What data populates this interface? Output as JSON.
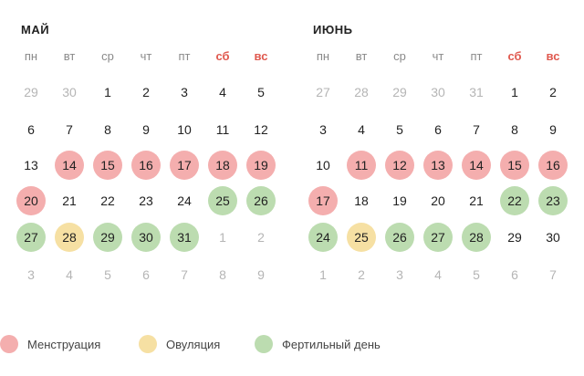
{
  "colors": {
    "menstruation": "#f4aeae",
    "ovulation": "#f6e0a3",
    "fertile": "#bcdcb0",
    "weekend_text": "#e0594f",
    "other_month_text": "#b5b5b5"
  },
  "weekdays": [
    {
      "label": "пн",
      "weekend": false
    },
    {
      "label": "вт",
      "weekend": false
    },
    {
      "label": "ср",
      "weekend": false
    },
    {
      "label": "чт",
      "weekend": false
    },
    {
      "label": "пт",
      "weekend": false
    },
    {
      "label": "сб",
      "weekend": true
    },
    {
      "label": "вс",
      "weekend": true
    }
  ],
  "months": [
    {
      "title": "МАЙ",
      "weeks": [
        [
          {
            "d": "29",
            "t": "other"
          },
          {
            "d": "30",
            "t": "other"
          },
          {
            "d": "1",
            "t": ""
          },
          {
            "d": "2",
            "t": ""
          },
          {
            "d": "3",
            "t": ""
          },
          {
            "d": "4",
            "t": ""
          },
          {
            "d": "5",
            "t": ""
          }
        ],
        [
          {
            "d": "6",
            "t": ""
          },
          {
            "d": "7",
            "t": ""
          },
          {
            "d": "8",
            "t": ""
          },
          {
            "d": "9",
            "t": ""
          },
          {
            "d": "10",
            "t": ""
          },
          {
            "d": "11",
            "t": ""
          },
          {
            "d": "12",
            "t": ""
          }
        ],
        [
          {
            "d": "13",
            "t": ""
          },
          {
            "d": "14",
            "t": "menstruation"
          },
          {
            "d": "15",
            "t": "menstruation"
          },
          {
            "d": "16",
            "t": "menstruation"
          },
          {
            "d": "17",
            "t": "menstruation"
          },
          {
            "d": "18",
            "t": "menstruation"
          },
          {
            "d": "19",
            "t": "menstruation"
          }
        ],
        [
          {
            "d": "20",
            "t": "menstruation"
          },
          {
            "d": "21",
            "t": ""
          },
          {
            "d": "22",
            "t": ""
          },
          {
            "d": "23",
            "t": ""
          },
          {
            "d": "24",
            "t": ""
          },
          {
            "d": "25",
            "t": "fertile"
          },
          {
            "d": "26",
            "t": "fertile"
          }
        ],
        [
          {
            "d": "27",
            "t": "fertile"
          },
          {
            "d": "28",
            "t": "ovulation"
          },
          {
            "d": "29",
            "t": "fertile"
          },
          {
            "d": "30",
            "t": "fertile"
          },
          {
            "d": "31",
            "t": "fertile"
          },
          {
            "d": "1",
            "t": "other"
          },
          {
            "d": "2",
            "t": "other"
          }
        ],
        [
          {
            "d": "3",
            "t": "other"
          },
          {
            "d": "4",
            "t": "other"
          },
          {
            "d": "5",
            "t": "other"
          },
          {
            "d": "6",
            "t": "other"
          },
          {
            "d": "7",
            "t": "other"
          },
          {
            "d": "8",
            "t": "other"
          },
          {
            "d": "9",
            "t": "other"
          }
        ]
      ]
    },
    {
      "title": "ИЮНЬ",
      "weeks": [
        [
          {
            "d": "27",
            "t": "other"
          },
          {
            "d": "28",
            "t": "other"
          },
          {
            "d": "29",
            "t": "other"
          },
          {
            "d": "30",
            "t": "other"
          },
          {
            "d": "31",
            "t": "other"
          },
          {
            "d": "1",
            "t": ""
          },
          {
            "d": "2",
            "t": ""
          }
        ],
        [
          {
            "d": "3",
            "t": ""
          },
          {
            "d": "4",
            "t": ""
          },
          {
            "d": "5",
            "t": ""
          },
          {
            "d": "6",
            "t": ""
          },
          {
            "d": "7",
            "t": ""
          },
          {
            "d": "8",
            "t": ""
          },
          {
            "d": "9",
            "t": ""
          }
        ],
        [
          {
            "d": "10",
            "t": ""
          },
          {
            "d": "11",
            "t": "menstruation"
          },
          {
            "d": "12",
            "t": "menstruation"
          },
          {
            "d": "13",
            "t": "menstruation"
          },
          {
            "d": "14",
            "t": "menstruation"
          },
          {
            "d": "15",
            "t": "menstruation"
          },
          {
            "d": "16",
            "t": "menstruation"
          }
        ],
        [
          {
            "d": "17",
            "t": "menstruation"
          },
          {
            "d": "18",
            "t": ""
          },
          {
            "d": "19",
            "t": ""
          },
          {
            "d": "20",
            "t": ""
          },
          {
            "d": "21",
            "t": ""
          },
          {
            "d": "22",
            "t": "fertile"
          },
          {
            "d": "23",
            "t": "fertile"
          }
        ],
        [
          {
            "d": "24",
            "t": "fertile"
          },
          {
            "d": "25",
            "t": "ovulation"
          },
          {
            "d": "26",
            "t": "fertile"
          },
          {
            "d": "27",
            "t": "fertile"
          },
          {
            "d": "28",
            "t": "fertile"
          },
          {
            "d": "29",
            "t": ""
          },
          {
            "d": "30",
            "t": ""
          }
        ],
        [
          {
            "d": "1",
            "t": "other"
          },
          {
            "d": "2",
            "t": "other"
          },
          {
            "d": "3",
            "t": "other"
          },
          {
            "d": "4",
            "t": "other"
          },
          {
            "d": "5",
            "t": "other"
          },
          {
            "d": "6",
            "t": "other"
          },
          {
            "d": "7",
            "t": "other"
          }
        ]
      ]
    }
  ],
  "legend": [
    {
      "key": "menstruation",
      "label": "Менструация"
    },
    {
      "key": "ovulation",
      "label": "Овуляция"
    },
    {
      "key": "fertile",
      "label": "Фертильный день"
    }
  ]
}
